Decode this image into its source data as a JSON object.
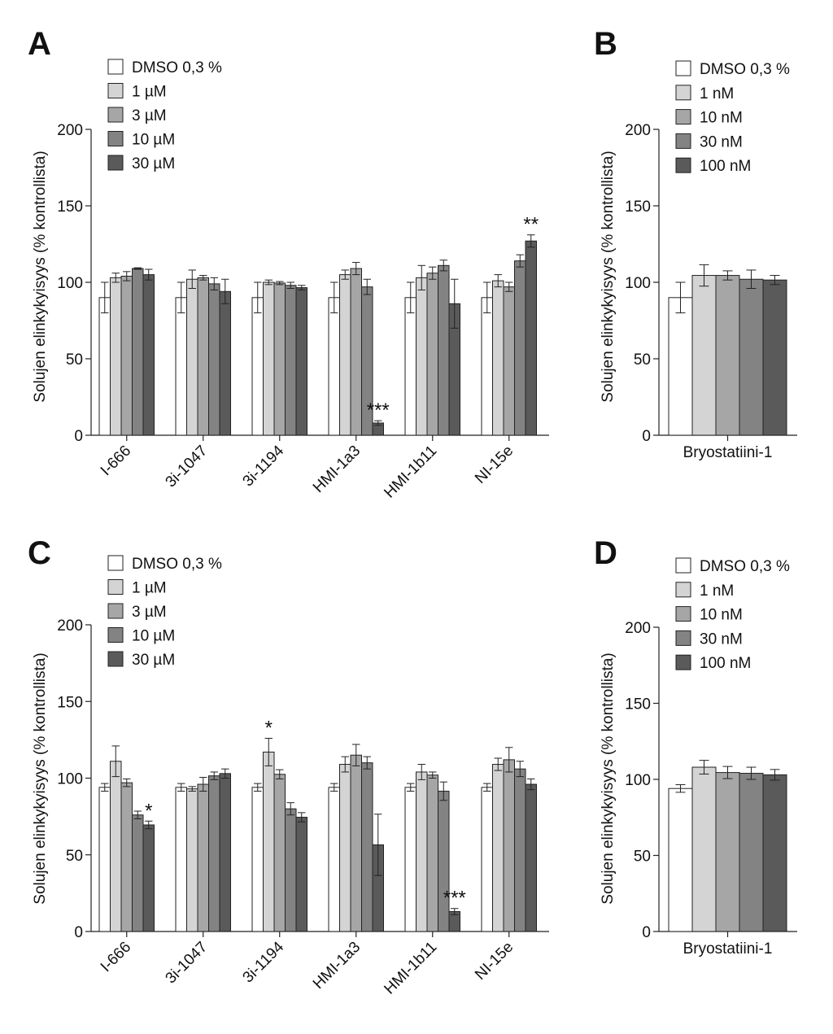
{
  "chart_data": [
    {
      "panel": "A",
      "type": "bar",
      "ylabel": "Solujen elinkykyisyys (% kontrollista)",
      "ylim": [
        0,
        200
      ],
      "yticks": [
        0,
        50,
        100,
        150,
        200
      ],
      "categories": [
        "I-666",
        "3i-1047",
        "3i-1194",
        "HMI-1a3",
        "HMI-1b11",
        "NI-15e"
      ],
      "legend_position": "top-left",
      "series": [
        {
          "name": "DMSO 0,3 %",
          "color": "#ffffff",
          "values": [
            90,
            90,
            90,
            90,
            90,
            90
          ],
          "errors": [
            10,
            10,
            10,
            10,
            10,
            10
          ]
        },
        {
          "name": "1 µM",
          "color": "#d4d4d4",
          "values": [
            103,
            102,
            100,
            105,
            103,
            101
          ],
          "errors": [
            3,
            6,
            1.5,
            3,
            8,
            4
          ]
        },
        {
          "name": "3 µM",
          "color": "#a6a6a6",
          "values": [
            104,
            103,
            99.5,
            109,
            106,
            97
          ],
          "errors": [
            3,
            1.5,
            1,
            4,
            4,
            3
          ]
        },
        {
          "name": "10 µM",
          "color": "#838383",
          "values": [
            109,
            99,
            98,
            97,
            111,
            114
          ],
          "errors": [
            0.5,
            4,
            2,
            5,
            3.5,
            4
          ]
        },
        {
          "name": "30 µM",
          "color": "#5a5a5a",
          "values": [
            105,
            94,
            96.5,
            8,
            86,
            127
          ],
          "errors": [
            3.5,
            8,
            1.5,
            1.5,
            16,
            4
          ]
        }
      ],
      "annotations": [
        {
          "category": 3,
          "series": 4,
          "text": "***"
        },
        {
          "category": 5,
          "series": 4,
          "text": "**"
        }
      ]
    },
    {
      "panel": "B",
      "type": "bar",
      "ylabel": "Solujen elinkykyisyys (% kontrollista)",
      "ylim": [
        0,
        200
      ],
      "yticks": [
        0,
        50,
        100,
        150,
        200
      ],
      "categories": [
        "Bryostatiini-1"
      ],
      "legend_position": "top-left",
      "series": [
        {
          "name": "DMSO 0,3 %",
          "color": "#ffffff",
          "values": [
            90
          ],
          "errors": [
            10
          ]
        },
        {
          "name": "1 nM",
          "color": "#d4d4d4",
          "values": [
            104.5
          ],
          "errors": [
            7
          ]
        },
        {
          "name": "10 nM",
          "color": "#a6a6a6",
          "values": [
            104.5
          ],
          "errors": [
            3
          ]
        },
        {
          "name": "30 nM",
          "color": "#838383",
          "values": [
            102
          ],
          "errors": [
            6
          ]
        },
        {
          "name": "100 nM",
          "color": "#5a5a5a",
          "values": [
            101.5
          ],
          "errors": [
            3
          ]
        }
      ],
      "annotations": []
    },
    {
      "panel": "C",
      "type": "bar",
      "ylabel": "Solujen elinkykyisyys (% kontrollista)",
      "ylim": [
        0,
        200
      ],
      "yticks": [
        0,
        50,
        100,
        150,
        200
      ],
      "categories": [
        "I-666",
        "3i-1047",
        "3i-1194",
        "HMI-1a3",
        "HMI-1b11",
        "NI-15e"
      ],
      "legend_position": "top-left",
      "series": [
        {
          "name": "DMSO 0,3 %",
          "color": "#ffffff",
          "values": [
            94,
            94,
            94,
            94,
            94,
            94
          ],
          "errors": [
            2.5,
            2.5,
            2.5,
            2.5,
            2.5,
            2.5
          ]
        },
        {
          "name": "1 µM",
          "color": "#d4d4d4",
          "values": [
            111,
            93,
            117,
            109,
            104,
            109
          ],
          "errors": [
            10,
            1.5,
            9,
            5,
            5,
            4
          ]
        },
        {
          "name": "3 µM",
          "color": "#a6a6a6",
          "values": [
            97,
            96,
            102.5,
            115,
            102,
            112
          ],
          "errors": [
            2.5,
            4.5,
            3,
            7,
            2,
            8
          ]
        },
        {
          "name": "10 µM",
          "color": "#838383",
          "values": [
            76,
            101.5,
            80,
            110,
            91.5,
            106
          ],
          "errors": [
            2.5,
            2.5,
            4,
            4,
            6,
            5
          ]
        },
        {
          "name": "30 µM",
          "color": "#5a5a5a",
          "values": [
            69.5,
            103,
            74.5,
            56.5,
            13,
            96
          ],
          "errors": [
            2.5,
            3,
            3,
            20,
            2,
            3.5
          ]
        }
      ],
      "annotations": [
        {
          "category": 0,
          "series": 4,
          "text": "*"
        },
        {
          "category": 2,
          "series": 1,
          "text": "*"
        },
        {
          "category": 4,
          "series": 4,
          "text": "***"
        }
      ]
    },
    {
      "panel": "D",
      "type": "bar",
      "ylabel": "Solujen elinkykyisyys (% kontrollista)",
      "ylim": [
        0,
        200
      ],
      "yticks": [
        0,
        50,
        100,
        150,
        200
      ],
      "categories": [
        "Bryostatiini-1"
      ],
      "legend_position": "top-left",
      "series": [
        {
          "name": "DMSO 0,3 %",
          "color": "#ffffff",
          "values": [
            94
          ],
          "errors": [
            2.5
          ]
        },
        {
          "name": "1 nM",
          "color": "#d4d4d4",
          "values": [
            108
          ],
          "errors": [
            4.5
          ]
        },
        {
          "name": "10 nM",
          "color": "#a6a6a6",
          "values": [
            104.5
          ],
          "errors": [
            4
          ]
        },
        {
          "name": "30 nM",
          "color": "#838383",
          "values": [
            104
          ],
          "errors": [
            4
          ]
        },
        {
          "name": "100 nM",
          "color": "#5a5a5a",
          "values": [
            103
          ],
          "errors": [
            3.5
          ]
        }
      ],
      "annotations": []
    }
  ]
}
